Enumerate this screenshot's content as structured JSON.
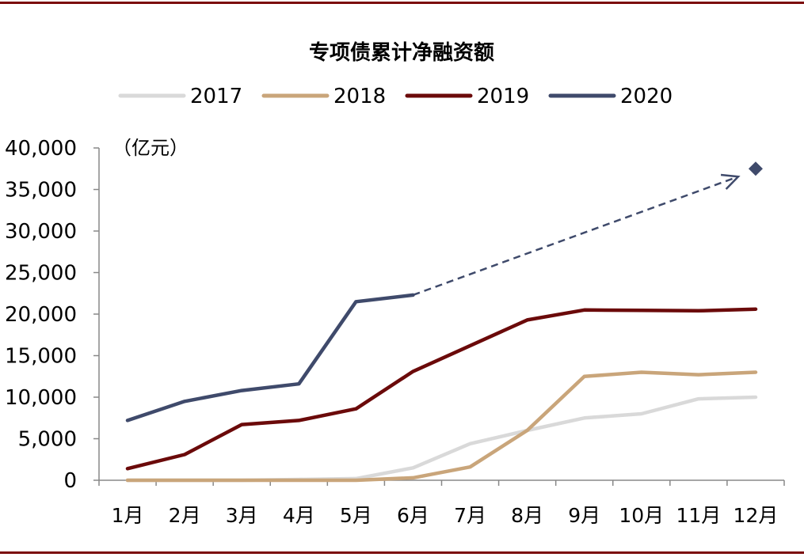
{
  "chart_data": {
    "type": "line",
    "title": "专项债累计净融资额",
    "ylabel": "（亿元）",
    "xlabel": "",
    "categories": [
      "1月",
      "2月",
      "3月",
      "4月",
      "5月",
      "6月",
      "7月",
      "8月",
      "9月",
      "10月",
      "11月",
      "12月"
    ],
    "yticks": [
      "0",
      "5,000",
      "10,000",
      "15,000",
      "20,000",
      "25,000",
      "30,000",
      "35,000",
      "40,000"
    ],
    "ylim": [
      0,
      40000
    ],
    "series": [
      {
        "name": "2017",
        "color": "#d9d9d9",
        "values": [
          0,
          0,
          0,
          100,
          200,
          1500,
          4400,
          6000,
          7500,
          8000,
          9800,
          10000
        ]
      },
      {
        "name": "2018",
        "color": "#c9a57a",
        "values": [
          0,
          0,
          0,
          0,
          0,
          300,
          1600,
          6000,
          12500,
          13000,
          12700,
          13000
        ]
      },
      {
        "name": "2019",
        "color": "#6b0a0a",
        "values": [
          1400,
          3100,
          6700,
          7200,
          8600,
          13100,
          16200,
          19300,
          20500,
          20450,
          20400,
          20600
        ]
      },
      {
        "name": "2020",
        "color": "#3f4a6b",
        "values": [
          7200,
          9500,
          10800,
          11600,
          21500,
          22300,
          null,
          null,
          null,
          null,
          null,
          null
        ]
      }
    ],
    "projection": {
      "series": "2020",
      "from_category": "6月",
      "from_value": 22300,
      "to_category": "12月",
      "to_value": 37500,
      "style": "dashed-arrow"
    },
    "legend_position": "top"
  }
}
